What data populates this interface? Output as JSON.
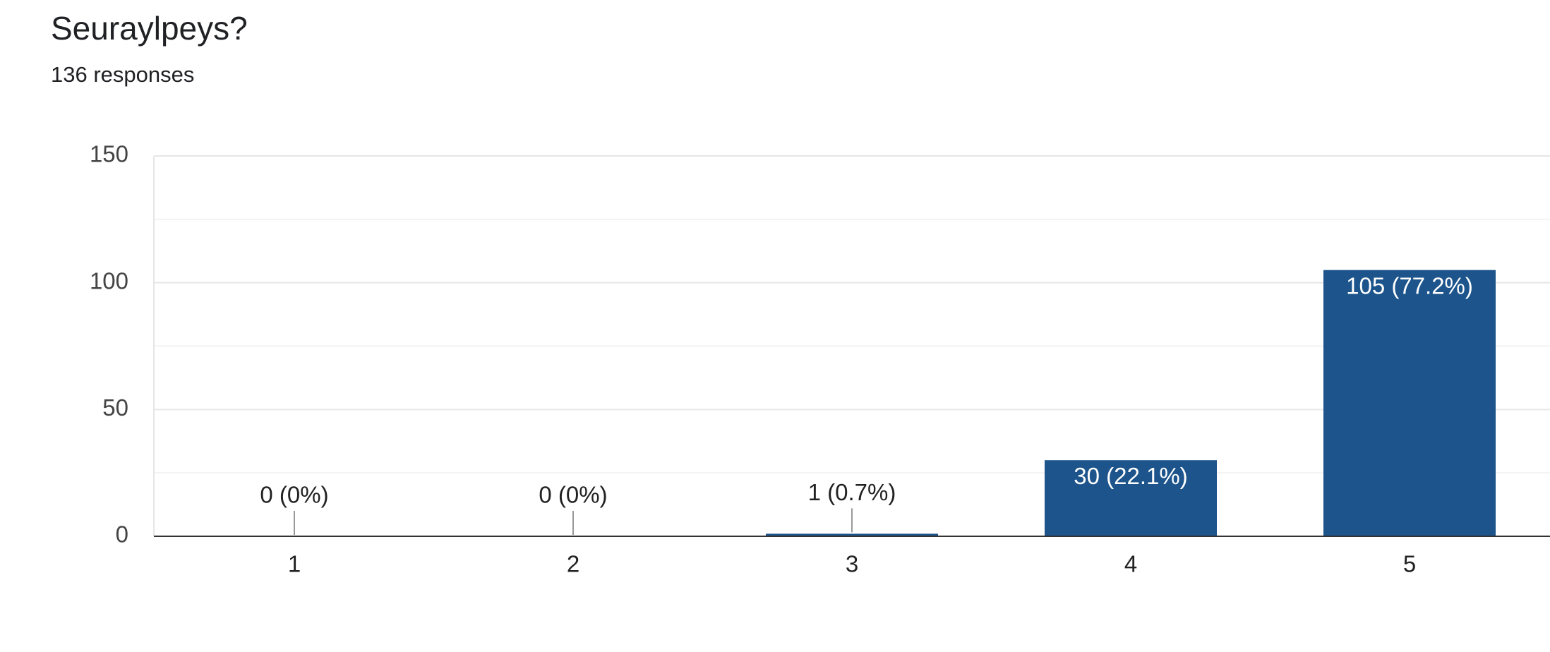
{
  "chart_data": {
    "type": "bar",
    "title": "Seuraylpeys?",
    "subtitle": "136 responses",
    "categories": [
      "1",
      "2",
      "3",
      "4",
      "5"
    ],
    "values": [
      0,
      0,
      1,
      30,
      105
    ],
    "value_labels": [
      "0 (0%)",
      "0 (0%)",
      "1 (0.7%)",
      "30 (22.1%)",
      "105 (77.2%)"
    ],
    "color": "#1c548b",
    "ylim": [
      0,
      150
    ],
    "yticks": [
      0,
      50,
      100,
      150
    ],
    "minor_yticks": [
      25,
      75,
      125
    ],
    "grid": true
  }
}
